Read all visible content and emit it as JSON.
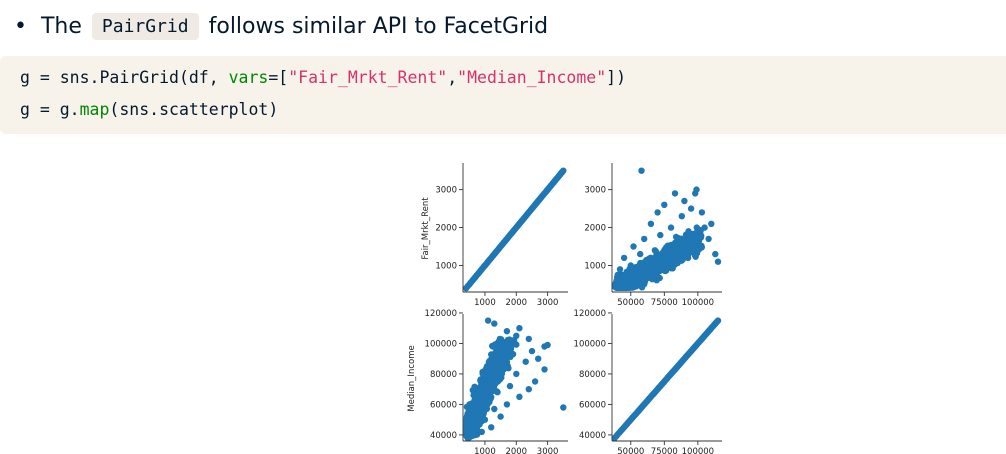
{
  "bullet": {
    "prefix": "The",
    "code": "PairGrid",
    "suffix": "follows similar API to FacetGrid"
  },
  "code": {
    "line1": {
      "a": "g = sns.PairGrid(df, ",
      "kw": "vars",
      "b": "=[",
      "s1": "\"Fair_Mrkt_Rent\"",
      "c": ",",
      "s2": "\"Median_Income\"",
      "d": "])"
    },
    "line2": {
      "a": "g = g.",
      "kw": "map",
      "b": "(sns.scatterplot)"
    }
  },
  "chart_data": {
    "type": "scatter",
    "layout": "pair-grid 2x2",
    "marker_color": "#1f77b4",
    "variables": [
      "Fair_Mrkt_Rent",
      "Median_Income"
    ],
    "ylabels": [
      "Fair_Mrkt_Rent",
      "Median_Income"
    ],
    "axes": {
      "Fair_Mrkt_Rent": {
        "lim": [
          300,
          3650
        ],
        "ticks": [
          1000,
          2000,
          3000
        ],
        "tick_labels": [
          "1000",
          "2000",
          "3000"
        ]
      },
      "Median_Income": {
        "lim": [
          36000,
          118000
        ],
        "ticks": [
          40000,
          60000,
          80000,
          100000,
          120000
        ],
        "tick_labels": [
          "40000",
          "60000",
          "80000",
          "100000",
          "120000"
        ],
        "x_tick_labels": [
          "50000",
          "75000",
          "100000"
        ],
        "x_ticks": [
          50000,
          75000,
          100000
        ]
      }
    },
    "diagonal_trend": {
      "Fair_Mrkt_Rent": [
        [
          400,
          400
        ],
        [
          3500,
          3500
        ]
      ],
      "Median_Income": [
        [
          38000,
          38000
        ],
        [
          115000,
          115000
        ]
      ]
    },
    "relationship_samples": [
      [
        38000,
        450
      ],
      [
        40000,
        600
      ],
      [
        42000,
        900
      ],
      [
        45000,
        1200
      ],
      [
        48000,
        700
      ],
      [
        50000,
        1000
      ],
      [
        52000,
        1500
      ],
      [
        55000,
        800
      ],
      [
        57000,
        1300
      ],
      [
        60000,
        1700
      ],
      [
        62000,
        1100
      ],
      [
        65000,
        2100
      ],
      [
        68000,
        1400
      ],
      [
        70000,
        2400
      ],
      [
        72000,
        1800
      ],
      [
        75000,
        2600
      ],
      [
        78000,
        1300
      ],
      [
        80000,
        2000
      ],
      [
        83000,
        2900
      ],
      [
        86000,
        1600
      ],
      [
        88000,
        2300
      ],
      [
        90000,
        2700
      ],
      [
        93000,
        1900
      ],
      [
        95000,
        2500
      ],
      [
        98000,
        2900
      ],
      [
        100000,
        1400
      ],
      [
        103000,
        2400
      ],
      [
        105000,
        2000
      ],
      [
        108000,
        1700
      ],
      [
        110000,
        2100
      ],
      [
        113000,
        1300
      ],
      [
        115000,
        1100
      ],
      [
        58000,
        3500
      ],
      [
        99000,
        3000
      ],
      [
        102000,
        1900
      ],
      [
        60000,
        900
      ]
    ]
  }
}
